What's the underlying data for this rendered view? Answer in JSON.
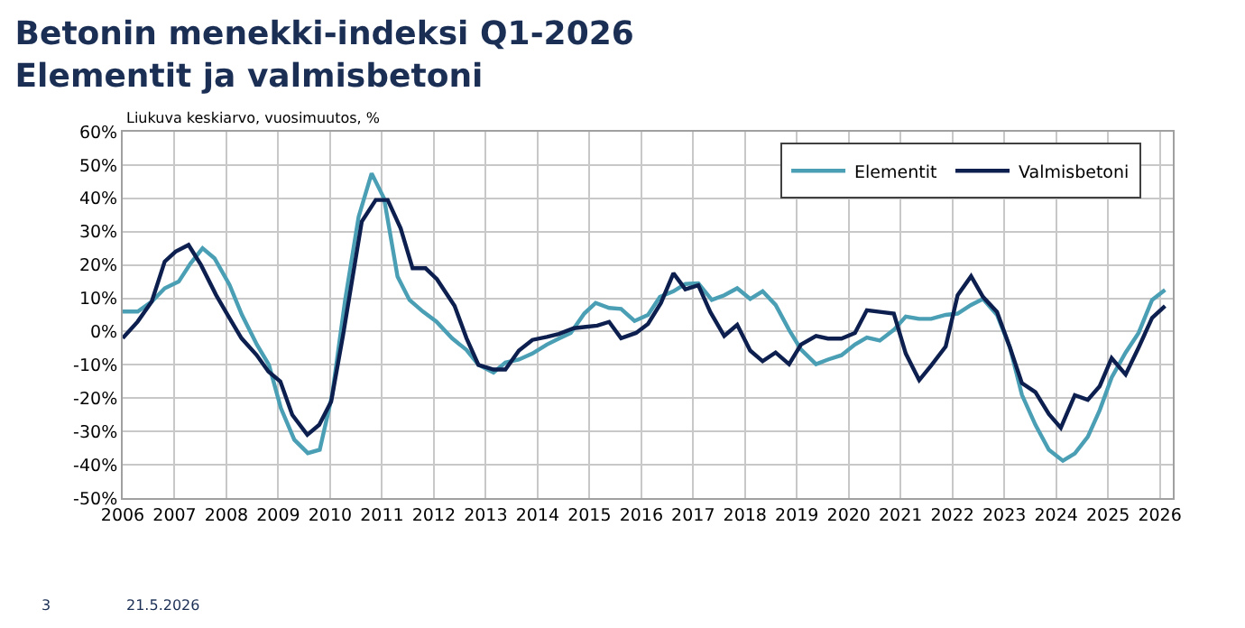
{
  "chart_data": {
    "type": "line",
    "title": "Betonin menekki-indeksi Q1-2026\nElementit ja valmisbetoni",
    "ylabel": "Liukuva keskiarvo, vuosimuutos, %",
    "annotations": [
      "3",
      "21.5.2026"
    ],
    "series": [
      {
        "name": "Elementit",
        "color": "#4a9fb5",
        "x": [
          2006.0,
          2006.29,
          2006.56,
          2006.81,
          2007.08,
          2007.31,
          2007.54,
          2007.77,
          2008.06,
          2008.3,
          2008.59,
          2008.82,
          2009.05,
          2009.31,
          2009.57,
          2009.8,
          2010.04,
          2010.29,
          2010.55,
          2010.8,
          2011.04,
          2011.3,
          2011.53,
          2011.79,
          2012.05,
          2012.35,
          2012.63,
          2012.86,
          2013.15,
          2013.38,
          2013.64,
          2013.9,
          2014.18,
          2014.41,
          2014.64,
          2014.9,
          2015.12,
          2015.38,
          2015.61,
          2015.87,
          2016.13,
          2016.36,
          2016.62,
          2016.85,
          2017.1,
          2017.36,
          2017.6,
          2017.85,
          2018.1,
          2018.34,
          2018.59,
          2018.85,
          2019.08,
          2019.37,
          2019.6,
          2019.86,
          2020.12,
          2020.35,
          2020.6,
          2020.87,
          2021.1,
          2021.36,
          2021.59,
          2021.87,
          2022.1,
          2022.36,
          2022.59,
          2022.86,
          2023.11,
          2023.34,
          2023.6,
          2023.86,
          2024.13,
          2024.36,
          2024.61,
          2024.84,
          2025.07,
          2025.34,
          2025.59,
          2025.85,
          2026.1
        ],
        "values": [
          6,
          6,
          9,
          13,
          15,
          20.5,
          25,
          22,
          14,
          5,
          -4,
          -10,
          -23,
          -32.5,
          -36.5,
          -35.5,
          -19,
          9.5,
          34.5,
          47.5,
          40,
          16.5,
          9.5,
          6,
          3,
          -2,
          -5.5,
          -10,
          -12.3,
          -9.3,
          -8.4,
          -6.6,
          -3.9,
          -2.1,
          -0.4,
          5.4,
          8.6,
          7.1,
          6.8,
          3.2,
          5,
          10.4,
          12.1,
          14.3,
          14.5,
          9.5,
          10.9,
          13,
          9.8,
          12.1,
          8,
          0.5,
          -5.4,
          -9.8,
          -8.4,
          -7.1,
          -3.9,
          -1.8,
          -2.7,
          0.5,
          4.5,
          3.8,
          3.8,
          5,
          5.4,
          8,
          9.8,
          5,
          -4.8,
          -19,
          -28,
          -35.5,
          -38.8,
          -36.6,
          -31.6,
          -23.6,
          -13.8,
          -6.3,
          -0.4,
          9.5,
          12.5
        ]
      },
      {
        "name": "Valmisbetoni",
        "color": "#0c1f4f",
        "x": [
          2006.0,
          2006.29,
          2006.56,
          2006.81,
          2007.02,
          2007.27,
          2007.51,
          2007.8,
          2008.06,
          2008.29,
          2008.58,
          2008.81,
          2009.04,
          2009.27,
          2009.56,
          2009.79,
          2010.02,
          2010.25,
          2010.61,
          2010.88,
          2011.11,
          2011.36,
          2011.59,
          2011.84,
          2012.06,
          2012.4,
          2012.63,
          2012.86,
          2013.15,
          2013.38,
          2013.64,
          2013.9,
          2014.18,
          2014.41,
          2014.7,
          2014.93,
          2015.15,
          2015.38,
          2015.61,
          2015.9,
          2016.13,
          2016.38,
          2016.62,
          2016.85,
          2017.1,
          2017.33,
          2017.6,
          2017.85,
          2018.1,
          2018.34,
          2018.59,
          2018.85,
          2019.08,
          2019.37,
          2019.6,
          2019.86,
          2020.12,
          2020.35,
          2020.6,
          2020.87,
          2021.1,
          2021.36,
          2021.59,
          2021.87,
          2022.1,
          2022.36,
          2022.59,
          2022.86,
          2023.11,
          2023.34,
          2023.6,
          2023.86,
          2024.09,
          2024.36,
          2024.61,
          2024.84,
          2025.07,
          2025.34,
          2025.59,
          2025.85,
          2026.1
        ],
        "values": [
          -2,
          3,
          9,
          21,
          24,
          26,
          20,
          11,
          4,
          -2,
          -7,
          -12,
          -15,
          -25,
          -31,
          -28,
          -21,
          -1,
          33,
          39.5,
          39.5,
          31,
          19,
          19,
          15.7,
          7.7,
          -2,
          -10,
          -11.4,
          -11.4,
          -5.7,
          -2.5,
          -1.6,
          -0.7,
          1,
          1.4,
          1.8,
          2.9,
          -2,
          -0.4,
          2.3,
          8.6,
          17.5,
          12.7,
          13.9,
          5.9,
          -1.3,
          2,
          -5.7,
          -8.9,
          -6.3,
          -9.8,
          -3.9,
          -1.3,
          -2.1,
          -2.1,
          -0.4,
          6.4,
          5.9,
          5.4,
          -6.6,
          -14.6,
          -10.2,
          -4.5,
          10.9,
          16.6,
          10.4,
          5.9,
          -4.8,
          -15.5,
          -18.2,
          -24.8,
          -28.9,
          -19.1,
          -20.5,
          -16.4,
          -8,
          -12.9,
          -4.8,
          4.1,
          7.7
        ]
      }
    ],
    "xlim": [
      2006,
      2026.25
    ],
    "xticks": [
      2006,
      2007,
      2008,
      2009,
      2010,
      2011,
      2012,
      2013,
      2014,
      2015,
      2016,
      2017,
      2018,
      2019,
      2020,
      2021,
      2022,
      2023,
      2024,
      2025,
      2026
    ],
    "ylim": [
      -50,
      60
    ],
    "yticks": [
      {
        "value": -50,
        "label": "-50%"
      },
      {
        "value": -40,
        "label": "-40%"
      },
      {
        "value": -30,
        "label": "-30%"
      },
      {
        "value": -20,
        "label": "-20%"
      },
      {
        "value": -10,
        "label": "-10%"
      },
      {
        "value": 0,
        "label": "0%"
      },
      {
        "value": 10,
        "label": "10%"
      },
      {
        "value": 20,
        "label": "20%"
      },
      {
        "value": 30,
        "label": "30%"
      },
      {
        "value": 40,
        "label": "40%"
      },
      {
        "value": 50,
        "label": "50%"
      },
      {
        "value": 60,
        "label": "60%"
      }
    ],
    "grid": true,
    "legend": "top right",
    "marker": "none",
    "line_style": "solid"
  }
}
